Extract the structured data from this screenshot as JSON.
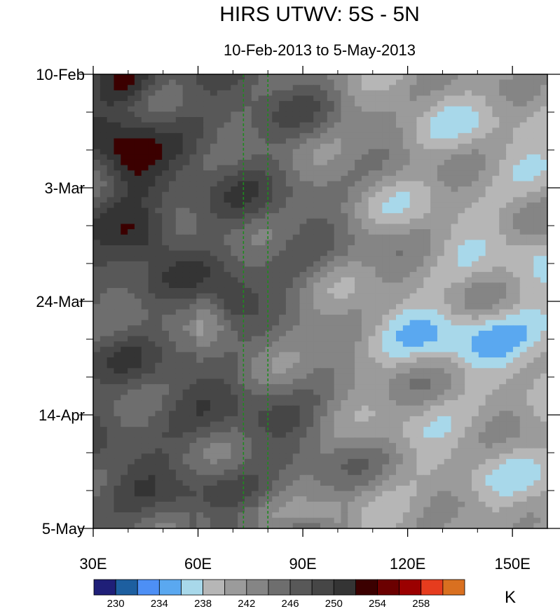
{
  "chart_data": {
    "type": "heatmap",
    "title": "HIRS UTWV: 5S - 5N",
    "subtitle": "10-Feb-2013 to 5-May-2013",
    "xlim": [
      30,
      160
    ],
    "x_ticks": [
      30,
      60,
      90,
      120,
      150
    ],
    "x_tick_labels": [
      "30E",
      "60E",
      "90E",
      "120E",
      "150E"
    ],
    "y_dates": [
      "2013-02-10",
      "2013-05-05"
    ],
    "y_ticks": [
      "2013-02-10",
      "2013-03-03",
      "2013-03-24",
      "2013-04-14",
      "2013-05-05"
    ],
    "y_tick_labels": [
      "10-Feb",
      "3-Mar",
      "24-Mar",
      "14-Apr",
      "5-May"
    ],
    "reference_lines_x": [
      73,
      80
    ],
    "colorbar": {
      "unit": "K",
      "levels": [
        228,
        230,
        232,
        234,
        236,
        238,
        240,
        242,
        244,
        246,
        248,
        250,
        252,
        254,
        256,
        258,
        260
      ],
      "tick_labels": [
        "230",
        "234",
        "238",
        "242",
        "246",
        "250",
        "254",
        "258"
      ],
      "colors": [
        "#1f1f78",
        "#1d5fa0",
        "#4d8ff5",
        "#5aa8f0",
        "#a8d8ea",
        "#b6b6b6",
        "#9b9b9b",
        "#858585",
        "#6e6e6e",
        "#585858",
        "#464646",
        "#343434",
        "#3b0000",
        "#6b0000",
        "#9b0000",
        "#e63c1e",
        "#d97020"
      ]
    }
  }
}
